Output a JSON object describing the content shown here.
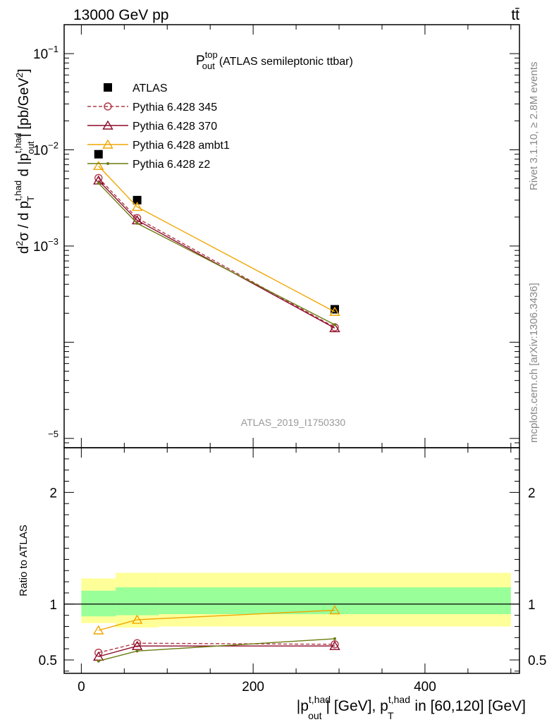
{
  "header": {
    "energy_label": "13000 GeV pp",
    "process_label": "tt̄"
  },
  "side_labels": {
    "rivet": "Rivet 3.1.10, ≥ 2.8M events",
    "mcplots": "mcplots.cern.ch [arXiv:1306.3436]"
  },
  "analysis_id": "ATLAS_2019_I1750330",
  "chart_data": [
    {
      "type": "line",
      "panel": "main",
      "title": "P_out^top (ATLAS semileptonic ttbar)",
      "title_main": "P",
      "title_sup": "top",
      "title_sub": "out",
      "title_rest": "(ATLAS semileptonic ttbar)",
      "ylabel": "d²σ / d p_T^{t,had} d |p_out^{t,had}| [pb/GeV²]",
      "yscale": "log",
      "xlim": [
        -20,
        510
      ],
      "ylim": [
        8e-06,
        0.2
      ],
      "x_ticks": [
        0,
        200,
        400
      ],
      "y_tick_labels": [
        {
          "value": 0.1,
          "base": "10",
          "exp": "−1"
        },
        {
          "value": 0.01,
          "base": "10",
          "exp": "−2"
        },
        {
          "value": 0.001,
          "base": "10",
          "exp": "−3"
        },
        {
          "value": 1e-05,
          "base": "",
          "exp": "−5"
        }
      ],
      "legend_position": "top-left",
      "series": [
        {
          "name": "ATLAS",
          "color": "#000000",
          "marker": "square",
          "line": "none",
          "x": [
            20,
            65,
            295
          ],
          "y": [
            0.009,
            0.003,
            0.00022
          ]
        },
        {
          "name": "Pythia 6.428 345",
          "color": "#b03a48",
          "marker": "open-circle",
          "line": "dashed",
          "x": [
            20,
            65,
            295
          ],
          "y": [
            0.0051,
            0.00195,
            0.000143
          ]
        },
        {
          "name": "Pythia 6.428 370",
          "color": "#8b0a2a",
          "marker": "open-triangle",
          "line": "solid",
          "x": [
            20,
            65,
            295
          ],
          "y": [
            0.0048,
            0.00185,
            0.00014
          ]
        },
        {
          "name": "Pythia 6.428 ambt1",
          "color": "#f0a500",
          "marker": "open-triangle",
          "line": "solid",
          "x": [
            20,
            65,
            295
          ],
          "y": [
            0.0068,
            0.00255,
            0.000207
          ]
        },
        {
          "name": "Pythia 6.428 z2",
          "color": "#6b7a10",
          "marker": "dot",
          "line": "solid",
          "x": [
            20,
            65,
            295
          ],
          "y": [
            0.0045,
            0.00172,
            0.000152
          ]
        }
      ]
    },
    {
      "type": "line",
      "panel": "ratio",
      "ylabel": "Ratio to ATLAS",
      "xlabel": "|p_out^{t,had}| [GeV], p_T^{t,had} in [60,120] [GeV]",
      "xlim": [
        -20,
        510
      ],
      "ylim": [
        0.38,
        2.4
      ],
      "x_ticks": [
        0,
        200,
        400
      ],
      "y_ticks": [
        0.5,
        1,
        2
      ],
      "bands": [
        {
          "name": "total uncertainty",
          "color": "#ffff99",
          "bins": [
            [
              0,
              40,
              0.83,
              1.23
            ],
            [
              40,
              90,
              0.79,
              1.28
            ],
            [
              90,
              500,
              0.8,
              1.28
            ]
          ]
        },
        {
          "name": "stat uncertainty",
          "color": "#99ff99",
          "bins": [
            [
              0,
              40,
              0.89,
              1.12
            ],
            [
              40,
              90,
              0.9,
              1.15
            ],
            [
              90,
              500,
              0.91,
              1.15
            ]
          ]
        }
      ],
      "series": [
        {
          "name": "Pythia 6.428 345",
          "color": "#b03a48",
          "marker": "open-circle",
          "line": "dashed",
          "x": [
            20,
            65,
            295
          ],
          "y": [
            0.565,
            0.65,
            0.64
          ]
        },
        {
          "name": "Pythia 6.428 370",
          "color": "#8b0a2a",
          "marker": "open-triangle",
          "line": "solid",
          "x": [
            20,
            65,
            295
          ],
          "y": [
            0.53,
            0.625,
            0.625
          ]
        },
        {
          "name": "Pythia 6.428 ambt1",
          "color": "#f0a500",
          "marker": "open-triangle",
          "line": "solid",
          "x": [
            20,
            65,
            295
          ],
          "y": [
            0.765,
            0.86,
            0.945
          ]
        },
        {
          "name": "Pythia 6.428 z2",
          "color": "#6b7a10",
          "marker": "dot",
          "line": "solid",
          "x": [
            20,
            65,
            295
          ],
          "y": [
            0.49,
            0.58,
            0.69
          ]
        }
      ]
    }
  ]
}
